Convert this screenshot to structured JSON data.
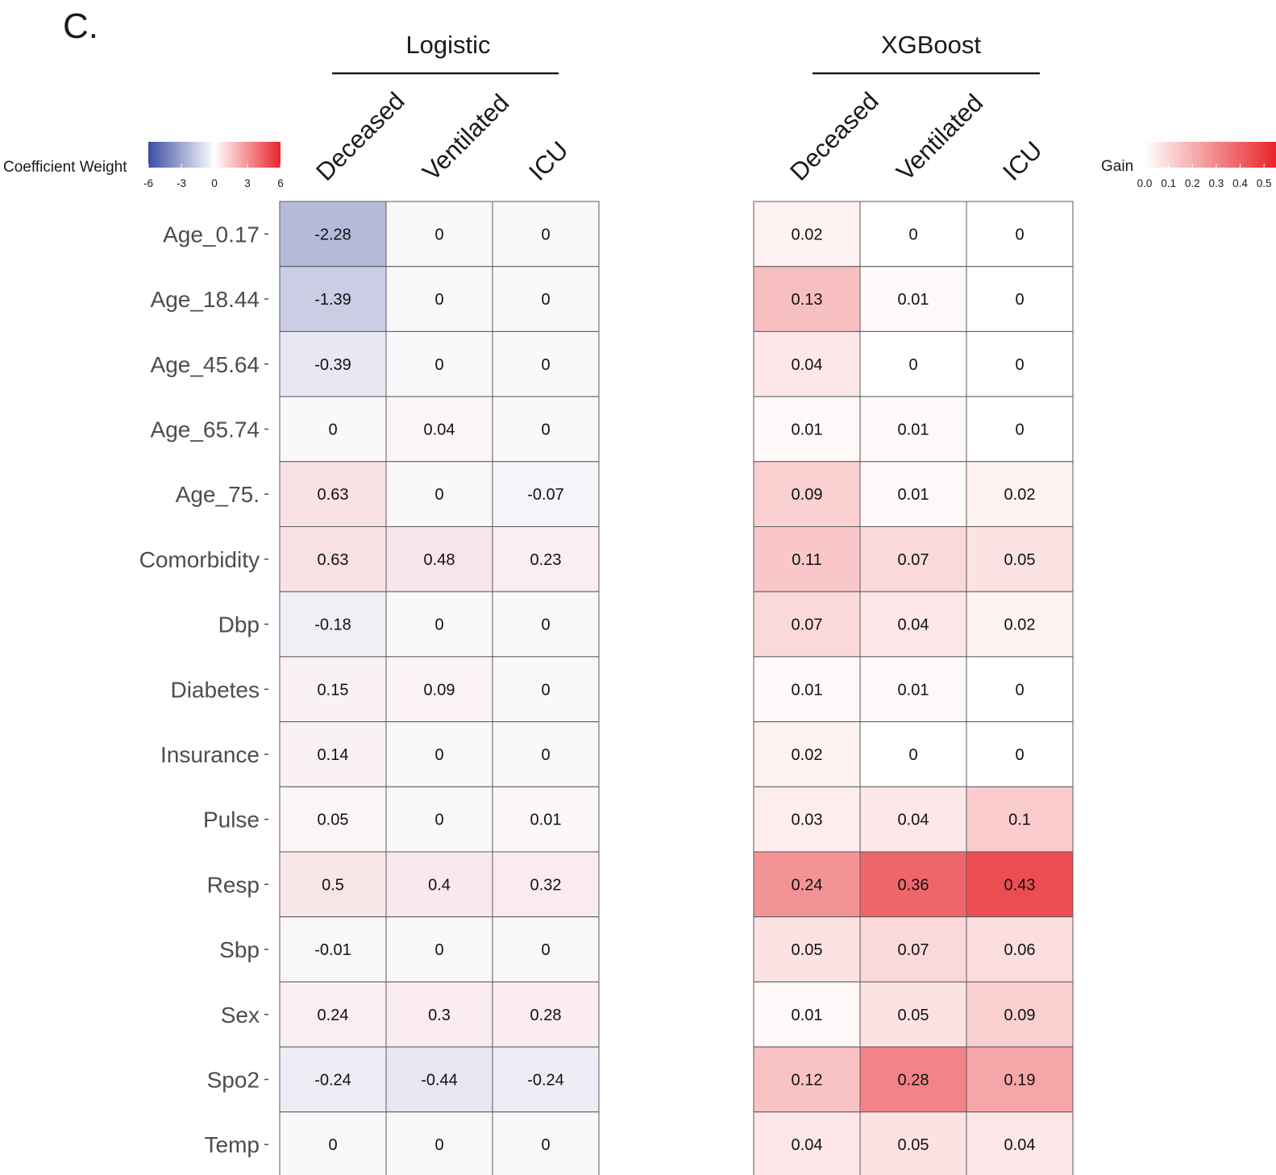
{
  "panel_label": "C.",
  "chart_data": {
    "type": "heatmap",
    "rows": [
      "Age_0.17",
      "Age_18.44",
      "Age_45.64",
      "Age_65.74",
      "Age_75.",
      "Comorbidity",
      "Dbp",
      "Diabetes",
      "Insurance",
      "Pulse",
      "Resp",
      "Sbp",
      "Sex",
      "Spo2",
      "Temp"
    ],
    "panels": [
      {
        "title": "Logistic",
        "columns": [
          "Deceased",
          "Ventilated",
          "ICU"
        ],
        "legend": {
          "title": "Coefficient Weight",
          "ticks": [
            "-6",
            "-3",
            "0",
            "3",
            "6"
          ],
          "range": [
            -6,
            6
          ],
          "colors": {
            "low": "#3b4ea3",
            "mid": "#ffffff",
            "high": "#e8242a"
          }
        },
        "values": [
          [
            -2.28,
            0,
            0
          ],
          [
            -1.39,
            0,
            0
          ],
          [
            -0.39,
            0,
            0
          ],
          [
            0,
            0.04,
            0
          ],
          [
            0.63,
            0,
            -0.07
          ],
          [
            0.63,
            0.48,
            0.23
          ],
          [
            -0.18,
            0,
            0
          ],
          [
            0.15,
            0.09,
            0
          ],
          [
            0.14,
            0,
            0
          ],
          [
            0.05,
            0,
            0.01
          ],
          [
            0.5,
            0.4,
            0.32
          ],
          [
            -0.01,
            0,
            0
          ],
          [
            0.24,
            0.3,
            0.28
          ],
          [
            -0.24,
            -0.44,
            -0.24
          ],
          [
            0,
            0,
            0
          ]
        ],
        "labels": [
          [
            "-2.28",
            "0",
            "0"
          ],
          [
            "-1.39",
            "0",
            "0"
          ],
          [
            "-0.39",
            "0",
            "0"
          ],
          [
            "0",
            "0.04",
            "0"
          ],
          [
            "0.63",
            "0",
            "-0.07"
          ],
          [
            "0.63",
            "0.48",
            "0.23"
          ],
          [
            "-0.18",
            "0",
            "0"
          ],
          [
            "0.15",
            "0.09",
            "0"
          ],
          [
            "0.14",
            "0",
            "0"
          ],
          [
            "0.05",
            "0",
            "0.01"
          ],
          [
            "0.5",
            "0.4",
            "0.32"
          ],
          [
            "-0.01",
            "0",
            "0"
          ],
          [
            "0.24",
            "0.3",
            "0.28"
          ],
          [
            "-0.24",
            "-0.44",
            "-0.24"
          ],
          [
            "0",
            "0",
            "0"
          ]
        ]
      },
      {
        "title": "XGBoost",
        "columns": [
          "Deceased",
          "Ventilated",
          "ICU"
        ],
        "legend": {
          "title": "Gain",
          "ticks": [
            "0.0",
            "0.1",
            "0.2",
            "0.3",
            "0.4",
            "0.5"
          ],
          "range": [
            0,
            0.55
          ],
          "colors": {
            "low": "#ffffff",
            "high": "#e8242a"
          }
        },
        "values": [
          [
            0.02,
            0,
            0
          ],
          [
            0.13,
            0.01,
            0
          ],
          [
            0.04,
            0,
            0
          ],
          [
            0.01,
            0.01,
            0
          ],
          [
            0.09,
            0.01,
            0.02
          ],
          [
            0.11,
            0.07,
            0.05
          ],
          [
            0.07,
            0.04,
            0.02
          ],
          [
            0.01,
            0.01,
            0
          ],
          [
            0.02,
            0,
            0
          ],
          [
            0.03,
            0.04,
            0.1
          ],
          [
            0.24,
            0.36,
            0.43
          ],
          [
            0.05,
            0.07,
            0.06
          ],
          [
            0.01,
            0.05,
            0.09
          ],
          [
            0.12,
            0.28,
            0.19
          ],
          [
            0.04,
            0.05,
            0.04
          ]
        ],
        "labels": [
          [
            "0.02",
            "0",
            "0"
          ],
          [
            "0.13",
            "0.01",
            "0"
          ],
          [
            "0.04",
            "0",
            "0"
          ],
          [
            "0.01",
            "0.01",
            "0"
          ],
          [
            "0.09",
            "0.01",
            "0.02"
          ],
          [
            "0.11",
            "0.07",
            "0.05"
          ],
          [
            "0.07",
            "0.04",
            "0.02"
          ],
          [
            "0.01",
            "0.01",
            "0"
          ],
          [
            "0.02",
            "0",
            "0"
          ],
          [
            "0.03",
            "0.04",
            "0.1"
          ],
          [
            "0.24",
            "0.36",
            "0.43"
          ],
          [
            "0.05",
            "0.07",
            "0.06"
          ],
          [
            "0.01",
            "0.05",
            "0.09"
          ],
          [
            "0.12",
            "0.28",
            "0.19"
          ],
          [
            "0.04",
            "0.05",
            "0.04"
          ]
        ]
      }
    ]
  }
}
